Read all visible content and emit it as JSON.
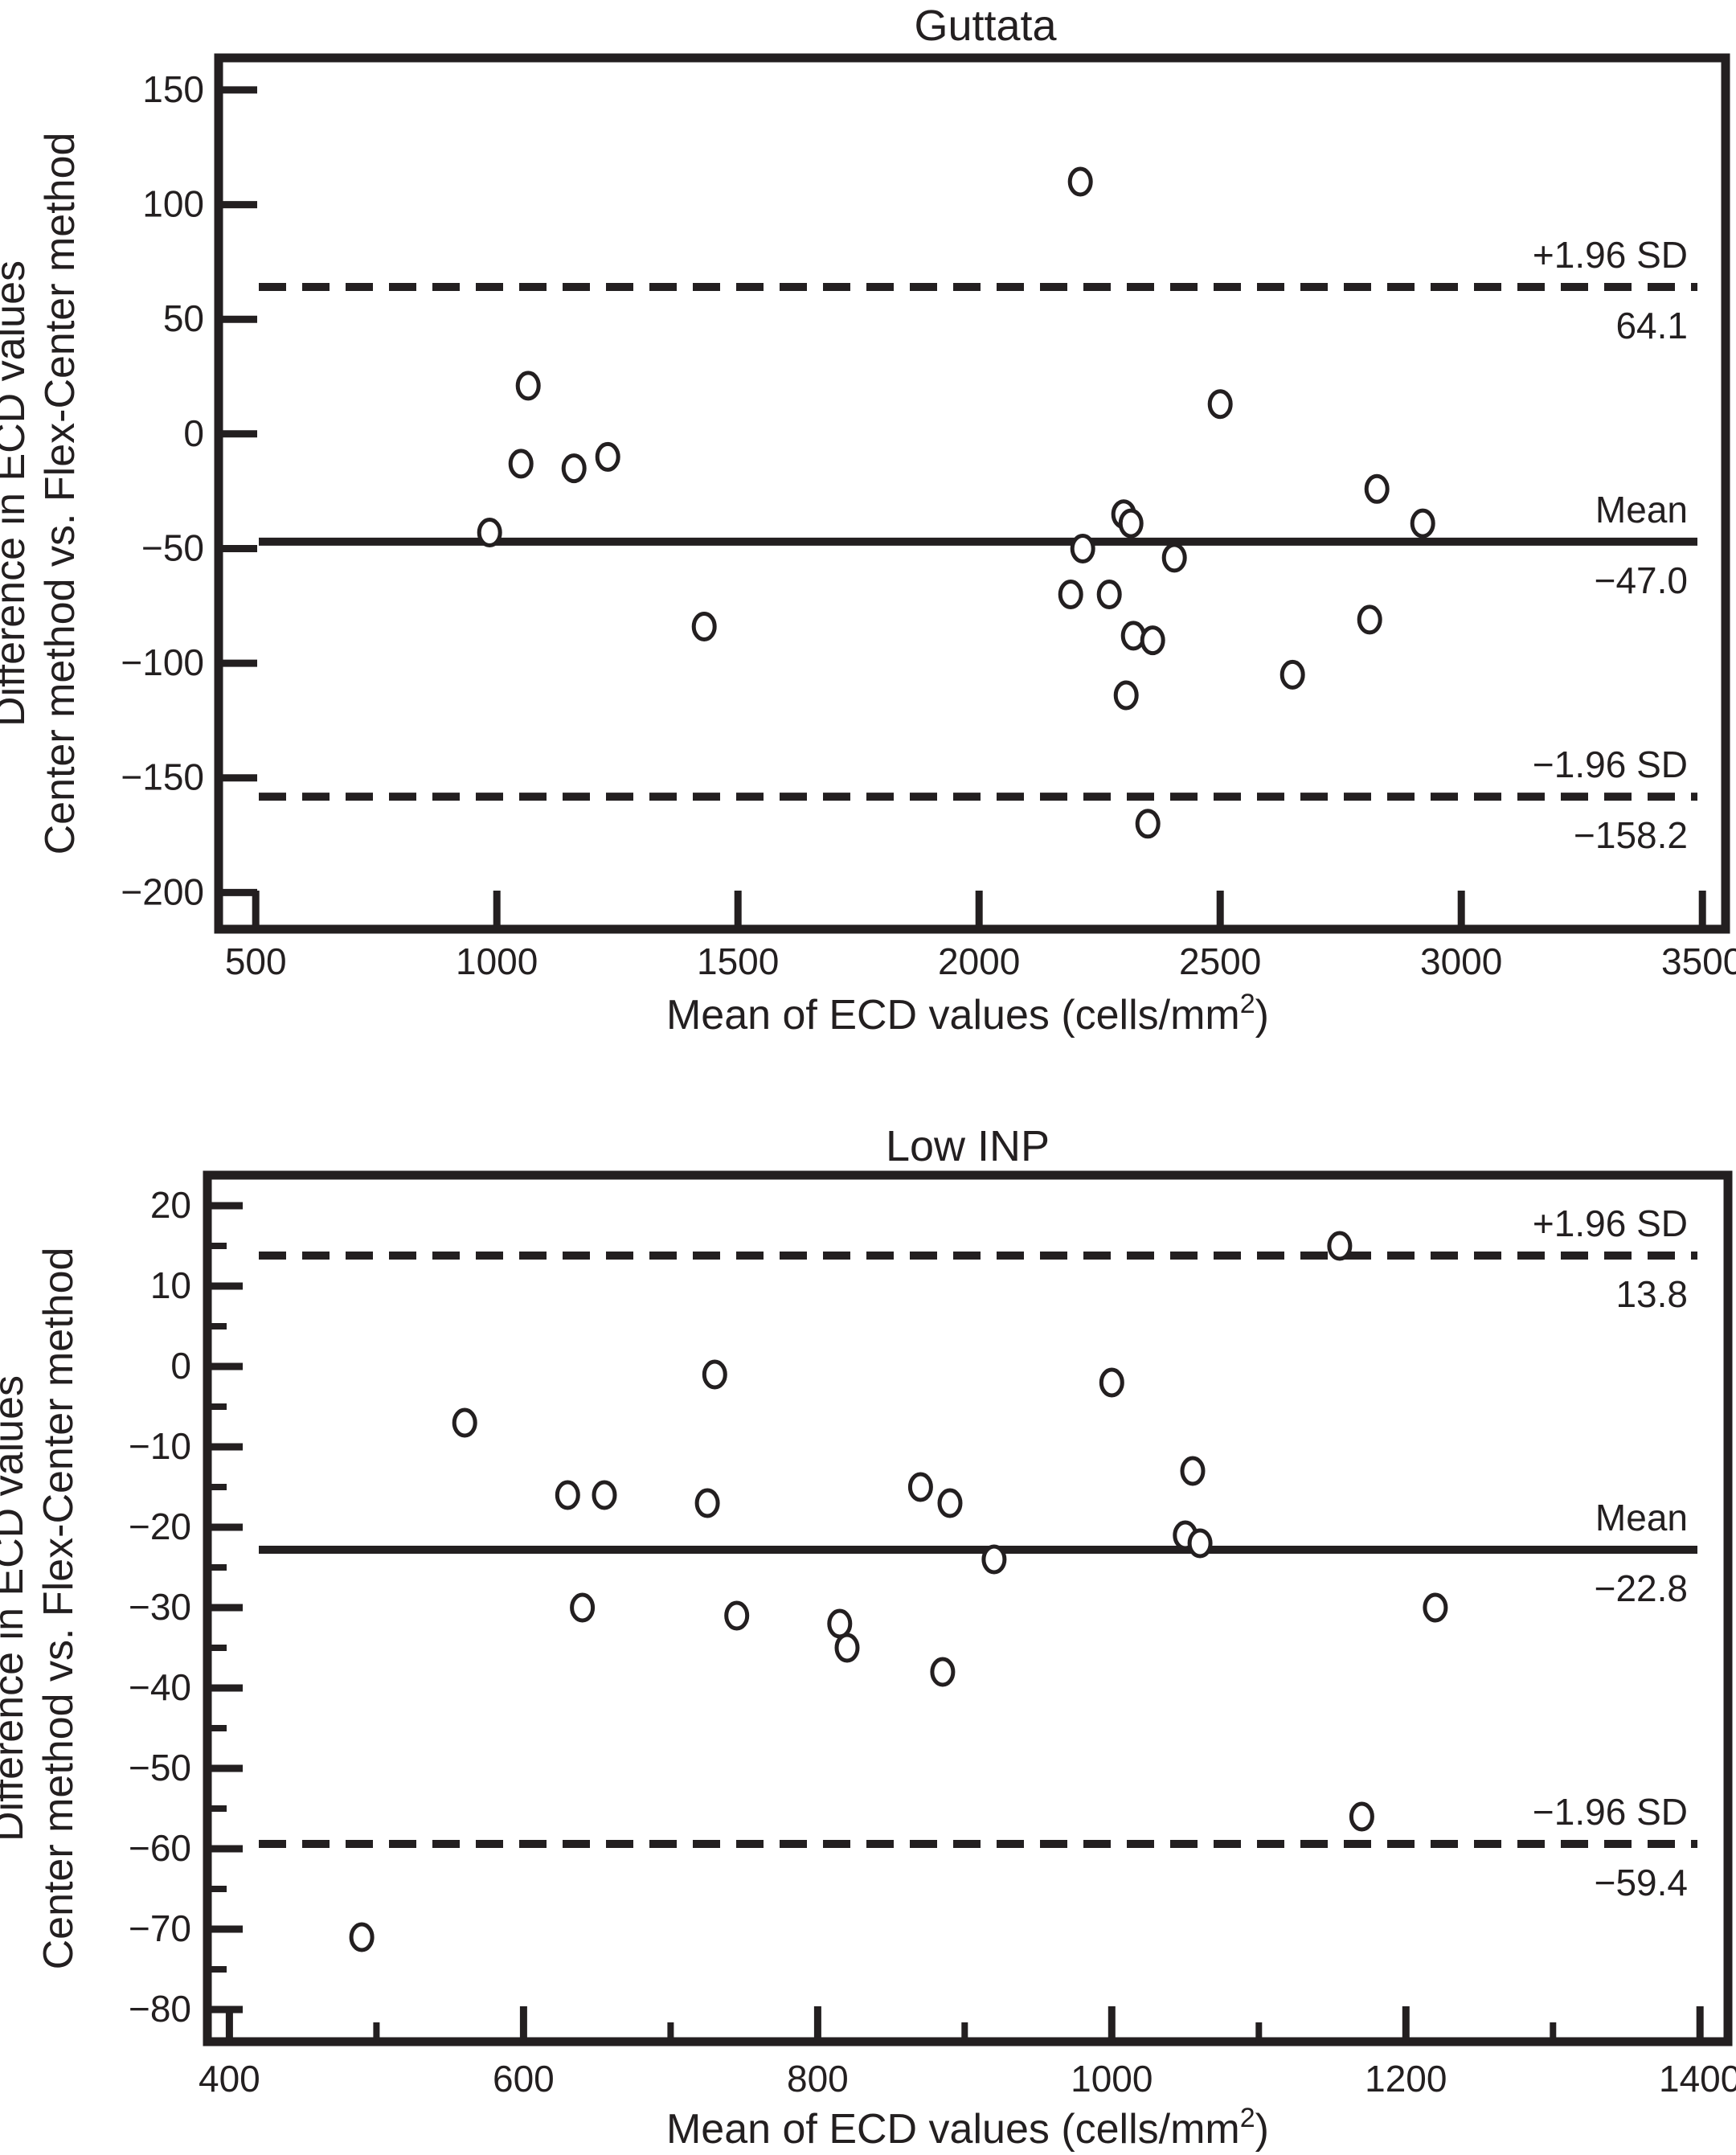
{
  "figure": {
    "background": "#ffffff",
    "ink_color": "#231f20"
  },
  "chart_data": [
    {
      "type": "scatter",
      "title": "Guttata",
      "xlabel": "Mean of ECD values (cells/mm²)",
      "ylabel_lines": [
        "Difference in ECD values",
        "Center method vs. Flex-Center method"
      ],
      "x_tick_values": [
        500,
        1000,
        1500,
        2000,
        2500,
        3000,
        3500
      ],
      "x_tick_labels": [
        "500",
        "1000",
        "1500",
        "2000",
        "2500",
        "3000",
        "3500"
      ],
      "x_minor_ticks": [],
      "y_tick_values": [
        150,
        100,
        50,
        0,
        -50,
        -100,
        -150,
        -200
      ],
      "y_tick_labels": [
        "150",
        "100",
        "50",
        "0",
        "−50",
        "−100",
        "−150",
        "−200"
      ],
      "y_minor_ticks": [],
      "xlim": [
        423,
        3548
      ],
      "ylim": [
        -216,
        164
      ],
      "grid": false,
      "legend": "none",
      "ref_lines": [
        {
          "value": 64.1,
          "style": "dashed",
          "label_above": "+1.96 SD",
          "label_below": "64.1"
        },
        {
          "value": -47.0,
          "style": "solid",
          "label_above": "Mean",
          "label_below": "−47.0"
        },
        {
          "value": -158.2,
          "style": "dashed",
          "label_above": "−1.96 SD",
          "label_below": "−158.2"
        }
      ],
      "points": [
        [
          2210,
          110
        ],
        [
          1065,
          21
        ],
        [
          2500,
          13
        ],
        [
          1050,
          -13
        ],
        [
          1160,
          -15
        ],
        [
          1230,
          -10
        ],
        [
          2825,
          -24
        ],
        [
          2300,
          -35
        ],
        [
          2315,
          -39
        ],
        [
          2920,
          -39
        ],
        [
          985,
          -43
        ],
        [
          2215,
          -50
        ],
        [
          2405,
          -54
        ],
        [
          2190,
          -70
        ],
        [
          2270,
          -70
        ],
        [
          1430,
          -84
        ],
        [
          2320,
          -88
        ],
        [
          2360,
          -90
        ],
        [
          2810,
          -81
        ],
        [
          2650,
          -105
        ],
        [
          2305,
          -114
        ],
        [
          2350,
          -170
        ]
      ]
    },
    {
      "type": "scatter",
      "title": "Low INP",
      "xlabel": "Mean of ECD values (cells/mm²)",
      "ylabel_lines": [
        "Difference in ECD values",
        "Center method vs. Flex-Center method"
      ],
      "x_tick_values": [
        400,
        600,
        800,
        1000,
        1200,
        1400
      ],
      "x_tick_labels": [
        "400",
        "600",
        "800",
        "1000",
        "1200",
        "1400"
      ],
      "x_minor_ticks": [
        500,
        700,
        900,
        1100,
        1300
      ],
      "y_tick_values": [
        20,
        10,
        0,
        -10,
        -20,
        -30,
        -40,
        -50,
        -60,
        -70,
        -80
      ],
      "y_tick_labels": [
        "20",
        "10",
        "0",
        "−10",
        "−20",
        "−30",
        "−40",
        "−50",
        "−60",
        "−70",
        "−80"
      ],
      "y_minor_ticks": [
        15,
        5,
        -5,
        -15,
        -25,
        -35,
        -45,
        -55,
        -65,
        -75
      ],
      "xlim": [
        385,
        1419
      ],
      "ylim": [
        -84,
        23.8
      ],
      "grid": false,
      "legend": "none",
      "ref_lines": [
        {
          "value": 13.8,
          "style": "dashed",
          "label_above": "+1.96 SD",
          "label_below": "13.8"
        },
        {
          "value": -22.8,
          "style": "solid",
          "label_above": "Mean",
          "label_below": "−22.8"
        },
        {
          "value": -59.4,
          "style": "dashed",
          "label_above": "−1.96 SD",
          "label_below": "−59.4"
        }
      ],
      "points": [
        [
          1155,
          15
        ],
        [
          730,
          -1
        ],
        [
          1000,
          -2
        ],
        [
          560,
          -7
        ],
        [
          1055,
          -13
        ],
        [
          870,
          -15
        ],
        [
          630,
          -16
        ],
        [
          655,
          -16
        ],
        [
          725,
          -17
        ],
        [
          890,
          -17
        ],
        [
          1050,
          -21
        ],
        [
          1060,
          -22
        ],
        [
          920,
          -24
        ],
        [
          640,
          -30
        ],
        [
          1220,
          -30
        ],
        [
          745,
          -31
        ],
        [
          815,
          -32
        ],
        [
          820,
          -35
        ],
        [
          885,
          -38
        ],
        [
          1170,
          -56
        ],
        [
          490,
          -71
        ]
      ]
    }
  ]
}
